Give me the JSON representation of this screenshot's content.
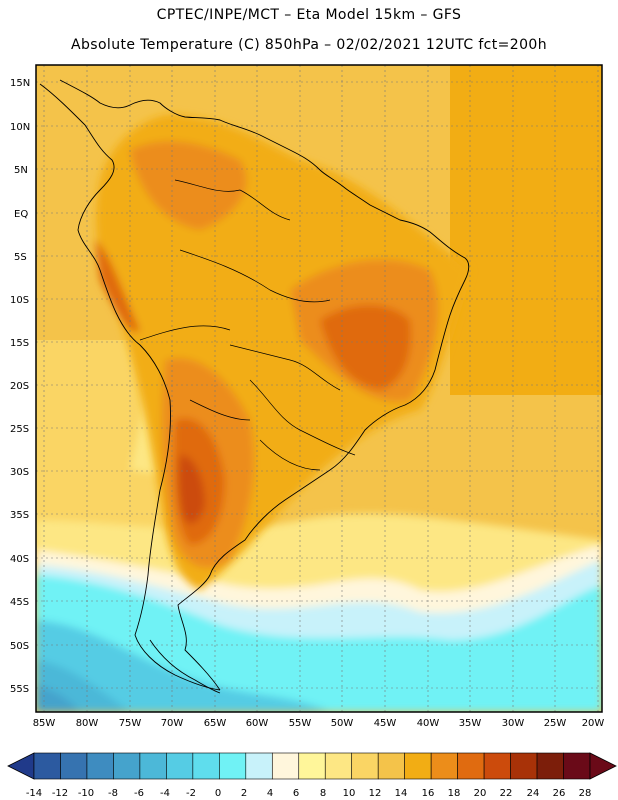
{
  "header": {
    "line1": "CPTEC/INPE/MCT –  Eta Model 15km – GFS",
    "line2": "Absolute Temperature (C) 850hPa – 02/02/2021 12UTC fct=200h"
  },
  "map": {
    "lat_labels": [
      "15N",
      "10N",
      "5N",
      "EQ",
      "5S",
      "10S",
      "15S",
      "20S",
      "25S",
      "30S",
      "35S",
      "40S",
      "45S",
      "50S",
      "55S"
    ],
    "lon_labels": [
      "85W",
      "80W",
      "75W",
      "70W",
      "65W",
      "60W",
      "55W",
      "50W",
      "45W",
      "40W",
      "35W",
      "30W",
      "25W",
      "20W"
    ]
  },
  "colorbar": {
    "labels": [
      "-14",
      "-12",
      "-10",
      "-8",
      "-6",
      "-4",
      "-2",
      "0",
      "2",
      "4",
      "6",
      "8",
      "10",
      "12",
      "14",
      "16",
      "18",
      "20",
      "22",
      "24",
      "26",
      "28"
    ],
    "colors": [
      "#203a8a",
      "#2c5aa0",
      "#3673b0",
      "#3e8cc0",
      "#45a3cc",
      "#4cb8d8",
      "#55cce4",
      "#5fdded",
      "#70f2f5",
      "#c8f2fa",
      "#fff6dc",
      "#fff69a",
      "#fde784",
      "#fad564",
      "#f4c34a",
      "#f2ad14",
      "#ec8d1a",
      "#e06b10",
      "#cc4b0c",
      "#a83208",
      "#7c1e0a",
      "#6a0a18"
    ]
  }
}
